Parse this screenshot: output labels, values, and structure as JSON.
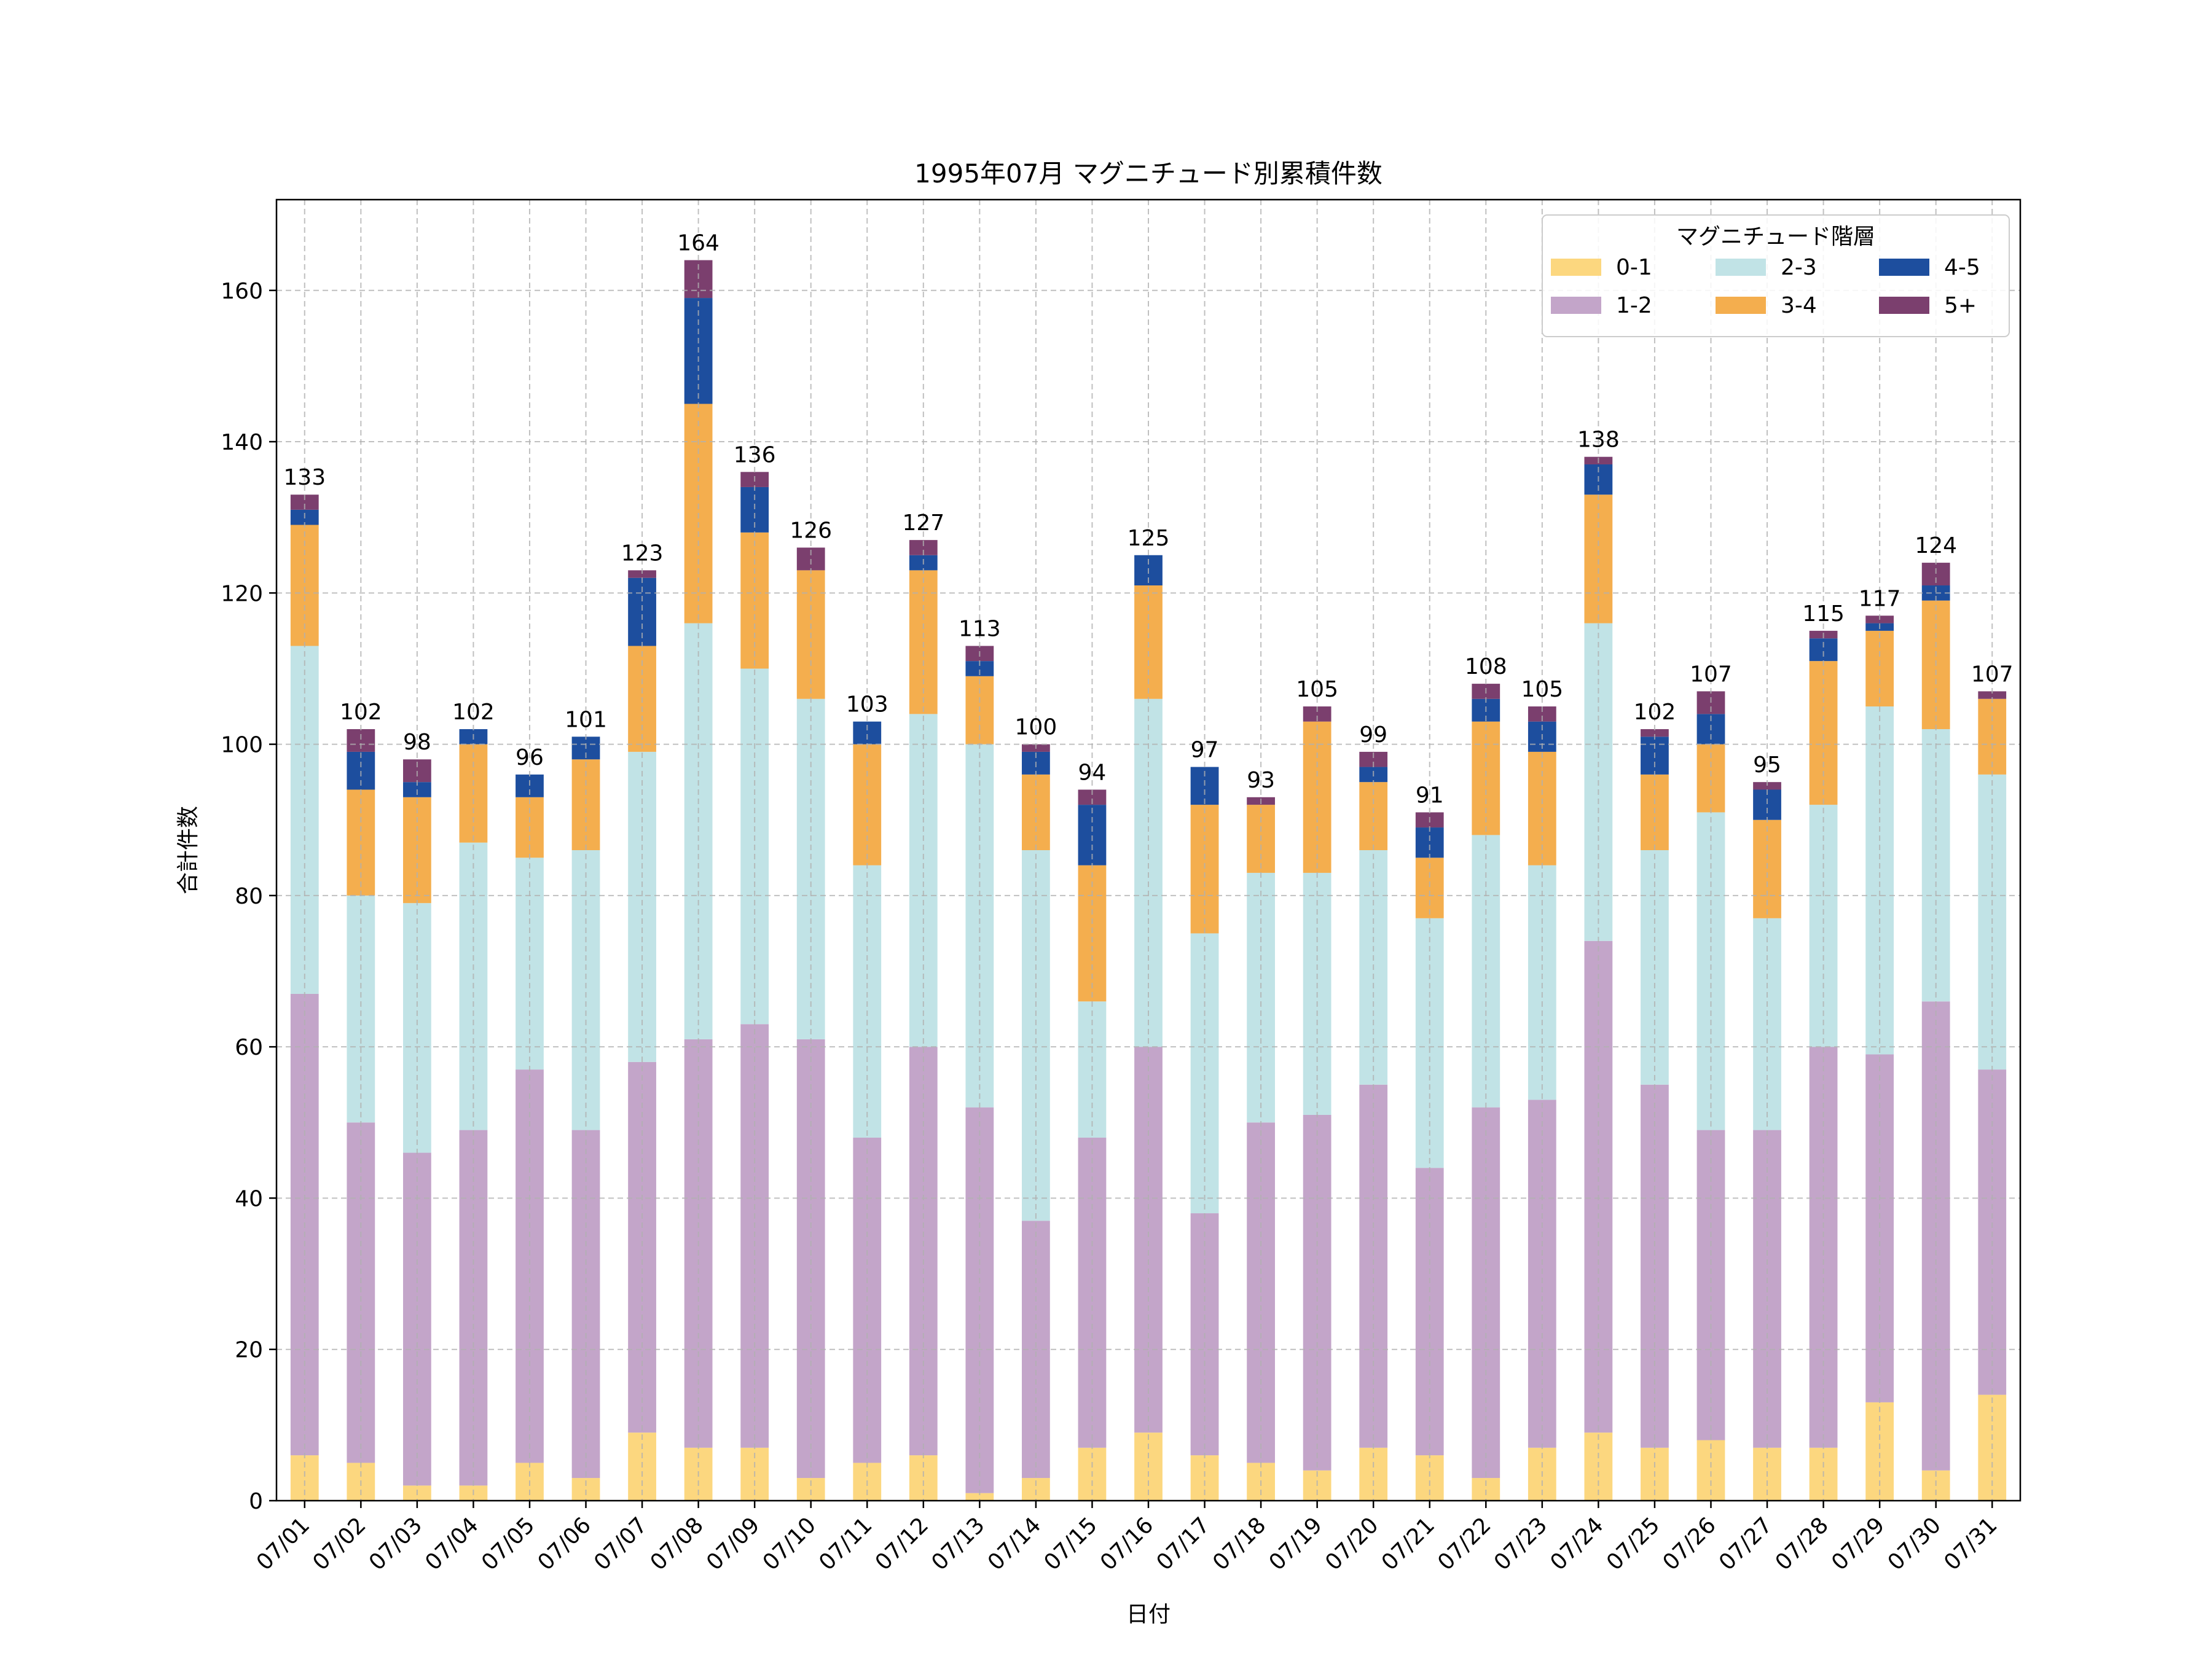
{
  "chart_data": {
    "type": "bar",
    "stacked": true,
    "title": "1995年07月 マグニチュード別累積件数",
    "xlabel": "日付",
    "ylabel": "合計件数",
    "ylim": [
      0,
      172
    ],
    "yticks": [
      0,
      20,
      40,
      60,
      80,
      100,
      120,
      140,
      160
    ],
    "grid": true,
    "legend_title": "マグニチュード階層",
    "legend_position": "top-right",
    "categories": [
      "07/01",
      "07/02",
      "07/03",
      "07/04",
      "07/05",
      "07/06",
      "07/07",
      "07/08",
      "07/09",
      "07/10",
      "07/11",
      "07/12",
      "07/13",
      "07/14",
      "07/15",
      "07/16",
      "07/17",
      "07/18",
      "07/19",
      "07/20",
      "07/21",
      "07/22",
      "07/23",
      "07/24",
      "07/25",
      "07/26",
      "07/27",
      "07/28",
      "07/29",
      "07/30",
      "07/31"
    ],
    "series": [
      {
        "name": "0-1",
        "color": "#fcd77f",
        "values": [
          6,
          5,
          2,
          2,
          5,
          3,
          9,
          7,
          7,
          3,
          5,
          6,
          1,
          3,
          7,
          9,
          6,
          5,
          4,
          7,
          6,
          3,
          7,
          9,
          7,
          8,
          7,
          7,
          13,
          4,
          14
        ]
      },
      {
        "name": "1-2",
        "color": "#c3a5c9",
        "values": [
          61,
          45,
          44,
          47,
          52,
          46,
          49,
          54,
          56,
          58,
          43,
          54,
          51,
          34,
          41,
          51,
          32,
          45,
          47,
          48,
          38,
          49,
          46,
          65,
          48,
          41,
          42,
          53,
          46,
          62,
          43
        ]
      },
      {
        "name": "2-3",
        "color": "#c1e3e6",
        "values": [
          46,
          30,
          33,
          38,
          28,
          37,
          41,
          55,
          47,
          45,
          36,
          44,
          48,
          49,
          18,
          46,
          37,
          33,
          32,
          31,
          33,
          36,
          31,
          42,
          31,
          42,
          28,
          32,
          46,
          36,
          39
        ]
      },
      {
        "name": "3-4",
        "color": "#f4ae4e",
        "values": [
          16,
          14,
          14,
          13,
          8,
          12,
          14,
          29,
          18,
          17,
          16,
          19,
          9,
          10,
          18,
          15,
          17,
          9,
          20,
          9,
          8,
          15,
          15,
          17,
          10,
          9,
          13,
          19,
          10,
          17,
          10
        ]
      },
      {
        "name": "4-5",
        "color": "#1d4e9e",
        "values": [
          2,
          5,
          2,
          2,
          3,
          3,
          9,
          14,
          6,
          0,
          3,
          2,
          2,
          3,
          8,
          4,
          5,
          0,
          0,
          2,
          4,
          3,
          4,
          4,
          5,
          4,
          4,
          3,
          1,
          2,
          0
        ]
      },
      {
        "name": "5+",
        "color": "#7b3f6e",
        "values": [
          2,
          3,
          3,
          0,
          0,
          0,
          1,
          5,
          2,
          3,
          0,
          2,
          2,
          1,
          2,
          0,
          0,
          1,
          2,
          2,
          2,
          2,
          2,
          1,
          1,
          3,
          1,
          1,
          1,
          3,
          1
        ]
      }
    ],
    "totals": [
      133,
      102,
      98,
      102,
      96,
      101,
      123,
      164,
      136,
      126,
      103,
      127,
      113,
      100,
      94,
      125,
      97,
      93,
      105,
      99,
      91,
      108,
      105,
      138,
      102,
      107,
      95,
      115,
      117,
      124,
      107
    ]
  }
}
